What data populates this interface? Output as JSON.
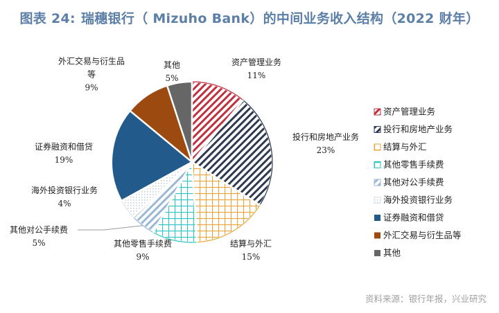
{
  "header": {
    "figure_label": "图表 24:",
    "title": "瑞穗银行（ Mizuho Bank）的中间业务收入结构（2022 财年）"
  },
  "source_note": "资料来源：银行年报，兴业研究",
  "chart_data": {
    "type": "pie",
    "title": "瑞穗银行（ Mizuho Bank）的中间业务收入结构（2022 财年）",
    "unit": "%",
    "legend_position": "right",
    "slices": [
      {
        "label": "资产管理业务",
        "lines": [
          "资产管理业务"
        ],
        "value": 11,
        "display": "11%",
        "color": "#c0303f",
        "pattern": "diag"
      },
      {
        "label": "投行和房地产业务",
        "lines": [
          "投行和房地产业务"
        ],
        "value": 23,
        "display": "23%",
        "color": "#2e3a52",
        "pattern": "diag"
      },
      {
        "label": "结算与外汇",
        "lines": [
          "结算与外汇"
        ],
        "value": 15,
        "display": "15%",
        "color": "#e8a43a",
        "pattern": "grid"
      },
      {
        "label": "其他零售手续费",
        "lines": [
          "其他零售手续费"
        ],
        "value": 9,
        "display": "9%",
        "color": "#2ec4c4",
        "pattern": "grid"
      },
      {
        "label": "其他对公手续费",
        "lines": [
          "其他对公手续费"
        ],
        "value": 5,
        "display": "5%",
        "color": "#9ab8d4",
        "pattern": "diag"
      },
      {
        "label": "海外投资银行业务",
        "lines": [
          "海外投资银行业务"
        ],
        "value": 4,
        "display": "4%",
        "color": "#dfe6ee",
        "pattern": "dots"
      },
      {
        "label": "证券融资和借贷",
        "lines": [
          "证券融资和借贷"
        ],
        "value": 19,
        "display": "19%",
        "color": "#235a8c",
        "pattern": "solid"
      },
      {
        "label": "外汇交易与衍生品等",
        "lines": [
          "外汇交易与衍生品",
          "等"
        ],
        "value": 9,
        "display": "9%",
        "color": "#9c4a0f",
        "pattern": "solid"
      },
      {
        "label": "其他",
        "lines": [
          "其他"
        ],
        "value": 5,
        "display": "5%",
        "color": "#666666",
        "pattern": "solid"
      }
    ]
  }
}
